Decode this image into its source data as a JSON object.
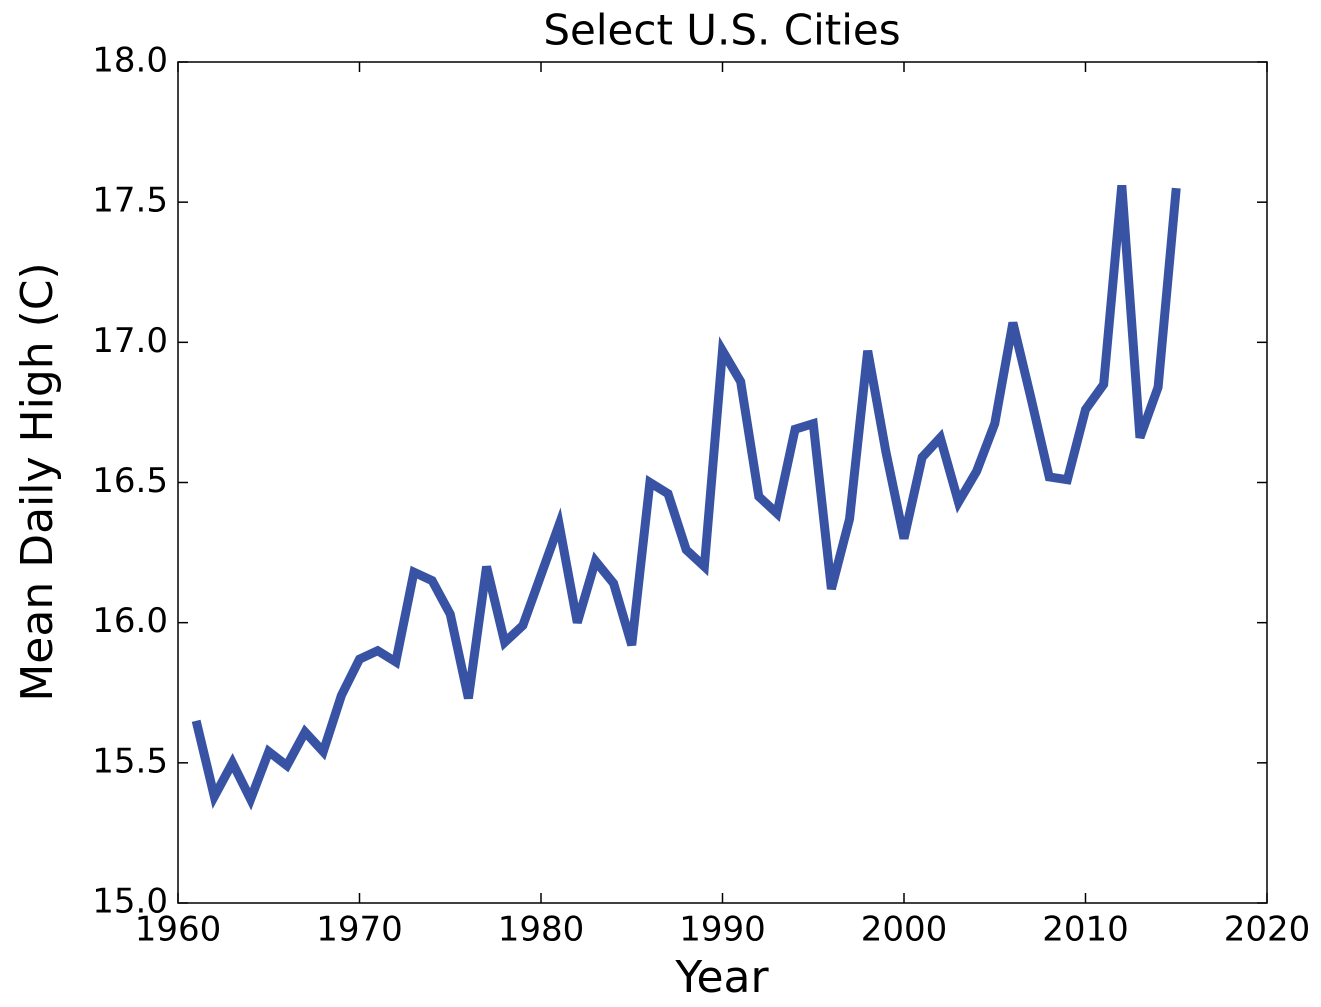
{
  "chart_data": {
    "type": "line",
    "title": "Select U.S. Cities",
    "x_label": "Year",
    "y_label": "Mean Daily High (C)",
    "x": [
      1961,
      1962,
      1963,
      1964,
      1965,
      1966,
      1967,
      1968,
      1969,
      1970,
      1971,
      1972,
      1973,
      1974,
      1975,
      1976,
      1977,
      1978,
      1979,
      1980,
      1981,
      1982,
      1983,
      1984,
      1985,
      1986,
      1987,
      1988,
      1989,
      1990,
      1991,
      1992,
      1993,
      1994,
      1995,
      1996,
      1997,
      1998,
      1999,
      2000,
      2001,
      2002,
      2003,
      2004,
      2005,
      2006,
      2007,
      2008,
      2009,
      2010,
      2011,
      2012,
      2013,
      2014,
      2015
    ],
    "values": [
      15.65,
      15.38,
      15.5,
      15.37,
      15.54,
      15.49,
      15.61,
      15.54,
      15.74,
      15.87,
      15.9,
      15.86,
      16.18,
      16.15,
      16.03,
      15.73,
      16.2,
      15.93,
      15.99,
      16.17,
      16.35,
      16.0,
      16.22,
      16.14,
      15.92,
      16.5,
      16.46,
      16.26,
      16.2,
      16.97,
      16.86,
      16.45,
      16.39,
      16.69,
      16.71,
      16.12,
      16.37,
      16.97,
      16.61,
      16.3,
      16.59,
      16.66,
      16.43,
      16.54,
      16.71,
      17.07,
      16.8,
      16.52,
      16.51,
      16.76,
      16.85,
      17.56,
      16.66,
      16.84,
      17.55
    ],
    "color": "#3953a4",
    "xlim": [
      1960,
      2020
    ],
    "xticks": [
      1960,
      1970,
      1980,
      1990,
      2000,
      2010,
      2020
    ],
    "ylim": [
      15,
      18
    ],
    "yticks": [
      {
        "value": 15,
        "label": "15.0"
      },
      {
        "value": 15.5,
        "label": "15.5"
      },
      {
        "value": 16,
        "label": "16.0"
      },
      {
        "value": 16.5,
        "label": "16.5"
      },
      {
        "value": 17,
        "label": "17.0"
      },
      {
        "value": 17.5,
        "label": "17.5"
      },
      {
        "value": 18,
        "label": "18.0"
      }
    ],
    "grid": false
  }
}
